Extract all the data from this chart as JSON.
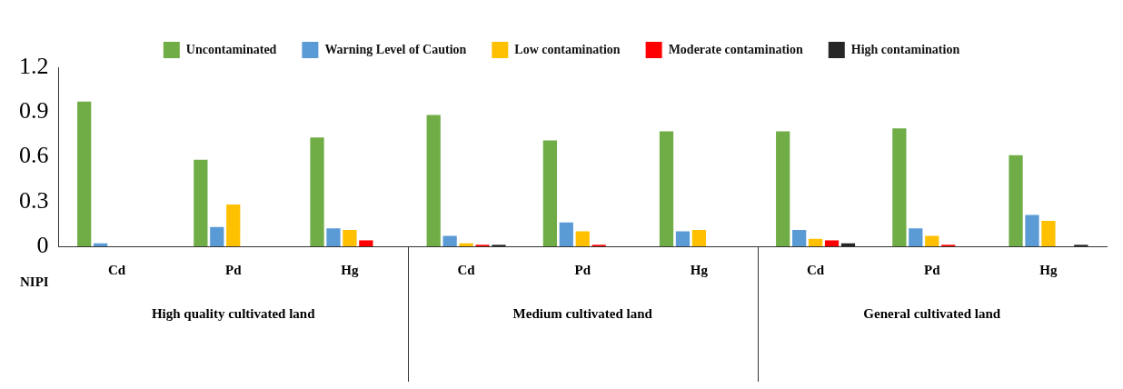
{
  "chart_data": {
    "type": "bar",
    "categories": [
      "Cd",
      "Pd",
      "Hg",
      "Cd",
      "Pd",
      "Hg",
      "Cd",
      "Pd",
      "Hg"
    ],
    "xlabel": "NIPI",
    "annotations": [
      "High quality cultivated land",
      "Medium cultivated land",
      "General cultivated land"
    ],
    "series": [
      {
        "name": "Uncontaminated",
        "color": "#70ad47",
        "values": [
          0.97,
          0.58,
          0.73,
          0.88,
          0.71,
          0.77,
          0.77,
          0.79,
          0.61
        ]
      },
      {
        "name": "Warning Level of Caution",
        "color": "#5b9bd5",
        "values": [
          0.02,
          0.13,
          0.12,
          0.07,
          0.16,
          0.1,
          0.11,
          0.12,
          0.21
        ]
      },
      {
        "name": "Low contamination",
        "color": "#ffc000",
        "values": [
          0,
          0.28,
          0.11,
          0.02,
          0.1,
          0.11,
          0.05,
          0.07,
          0.17
        ]
      },
      {
        "name": "Moderate contamination",
        "color": "#ff0000",
        "values": [
          0,
          0,
          0.04,
          0.01,
          0.01,
          0,
          0.04,
          0.01,
          0
        ]
      },
      {
        "name": "High contamination",
        "color": "#262626",
        "values": [
          0,
          0,
          0,
          0.01,
          0,
          0,
          0.02,
          0,
          0.01
        ]
      }
    ],
    "ylim": [
      0,
      1.2
    ],
    "yticks": [
      0,
      0.3,
      0.6,
      0.9,
      1.2
    ],
    "grid": false,
    "legend": "top"
  }
}
